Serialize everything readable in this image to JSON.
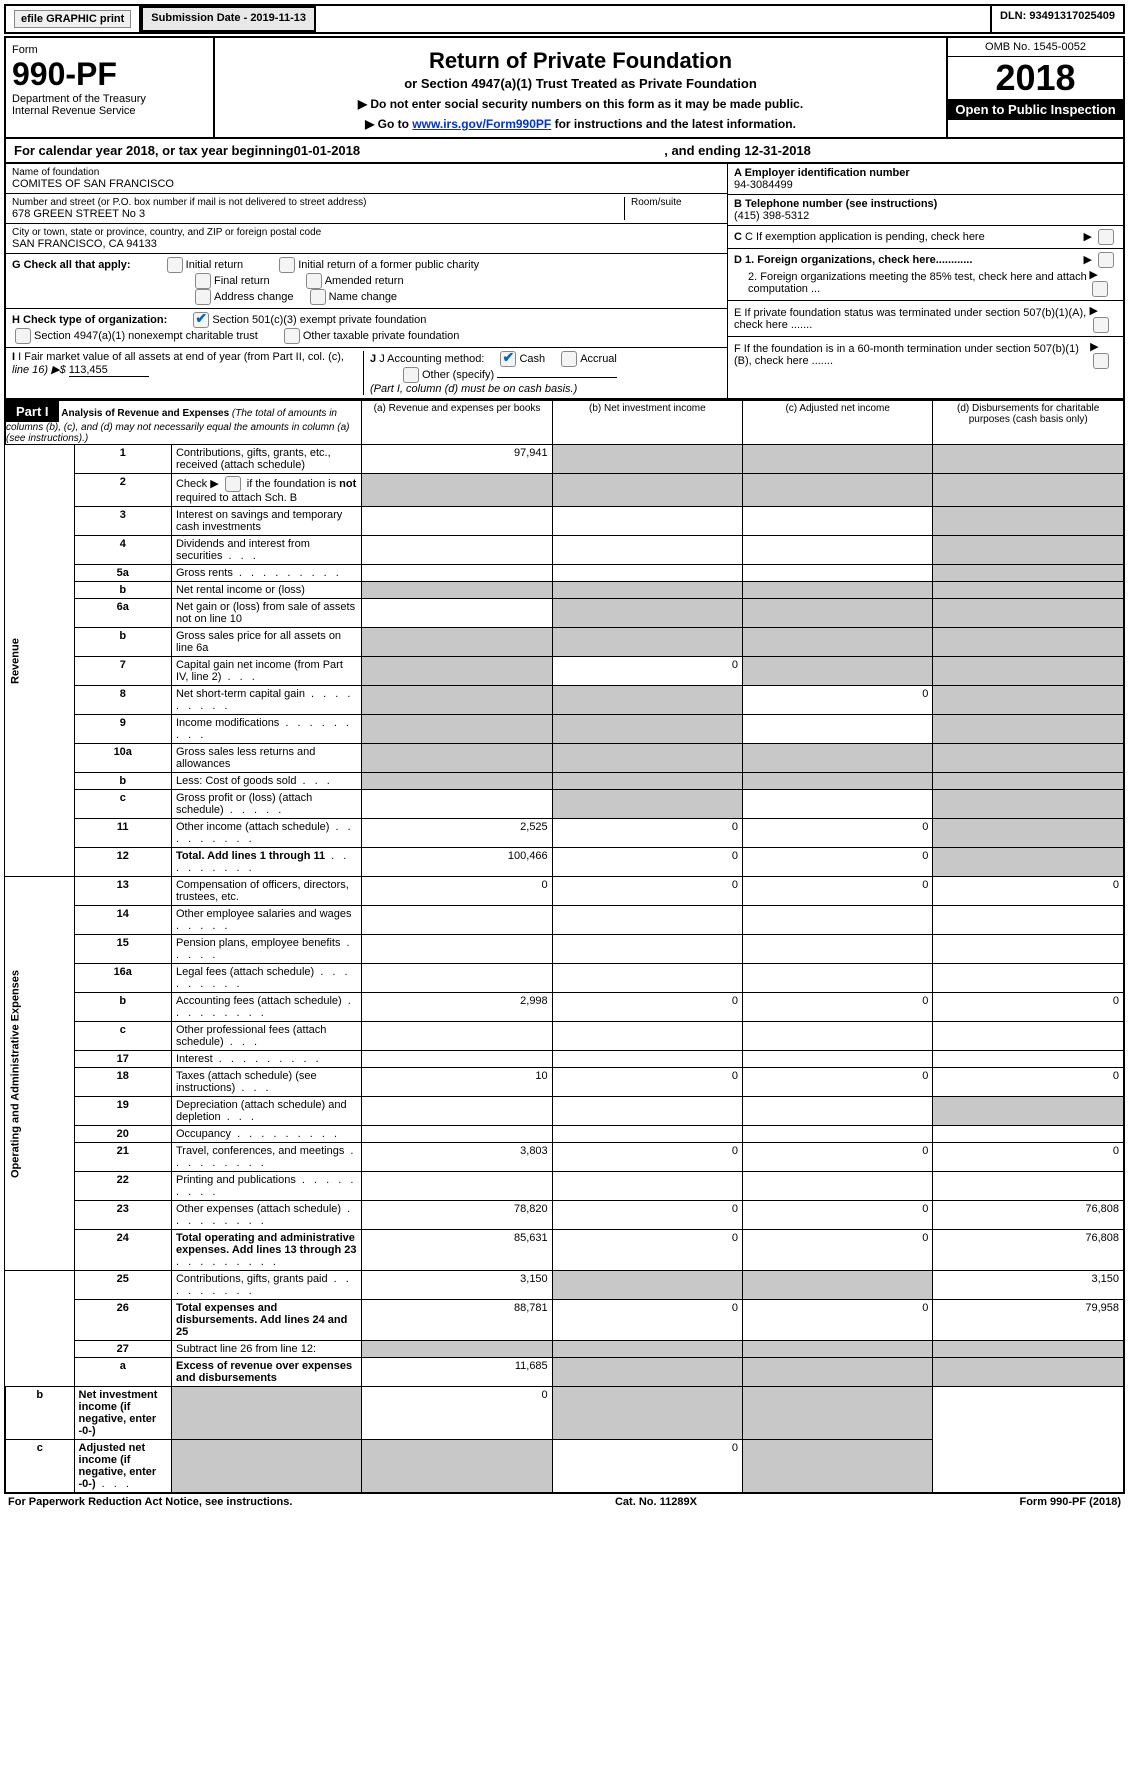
{
  "top": {
    "efile": "efile GRAPHIC print",
    "submission_label": "Submission Date - 2019-11-13",
    "dln": "DLN: 93491317025409"
  },
  "header": {
    "form_word": "Form",
    "form_number": "990-PF",
    "dept": "Department of the Treasury",
    "irs": "Internal Revenue Service",
    "title": "Return of Private Foundation",
    "subtitle": "or Section 4947(a)(1) Trust Treated as Private Foundation",
    "instr1": "▶ Do not enter social security numbers on this form as it may be made public.",
    "instr2_pre": "▶ Go to ",
    "instr2_link": "www.irs.gov/Form990PF",
    "instr2_post": " for instructions and the latest information.",
    "omb": "OMB No. 1545-0052",
    "year": "2018",
    "open": "Open to Public Inspection"
  },
  "cal": {
    "prefix": "For calendar year 2018, or tax year beginning ",
    "begin": "01-01-2018",
    "mid": ", and ending ",
    "end": "12-31-2018"
  },
  "namebox": {
    "name_label": "Name of foundation",
    "name": "COMITES OF SAN FRANCISCO",
    "street_label": "Number and street (or P.O. box number if mail is not delivered to street address)",
    "street": "678 GREEN STREET No 3",
    "room_label": "Room/suite",
    "city_label": "City or town, state or province, country, and ZIP or foreign postal code",
    "city": "SAN FRANCISCO, CA  94133"
  },
  "right": {
    "a_label": "A Employer identification number",
    "a_val": "94-3084499",
    "b_label": "B Telephone number (see instructions)",
    "b_val": "(415) 398-5312",
    "c_label": "C If exemption application is pending, check here",
    "d1": "D 1. Foreign organizations, check here............",
    "d2": "2. Foreign organizations meeting the 85% test, check here and attach computation ...",
    "e": "E  If private foundation status was terminated under section 507(b)(1)(A), check here .......",
    "f": "F  If the foundation is in a 60-month termination under section 507(b)(1)(B), check here .......",
    "g_label": "G Check all that apply:",
    "g_initial": "Initial return",
    "g_initial_former": "Initial return of a former public charity",
    "g_final": "Final return",
    "g_amended": "Amended return",
    "g_address": "Address change",
    "g_name": "Name change",
    "h_label": "H Check type of organization:",
    "h_501": "Section 501(c)(3) exempt private foundation",
    "h_4947": "Section 4947(a)(1) nonexempt charitable trust",
    "h_other": "Other taxable private foundation",
    "i_label": "I Fair market value of all assets at end of year (from Part II, col. (c),",
    "i_line": "line 16) ▶$",
    "i_val": "113,455",
    "j_label": "J Accounting method:",
    "j_cash": "Cash",
    "j_accrual": "Accrual",
    "j_other": "Other (specify)",
    "j_note": "(Part I, column (d) must be on cash basis.)"
  },
  "part1": {
    "label": "Part I",
    "title": "Analysis of Revenue and Expenses",
    "title_note": " (The total of amounts in columns (b), (c), and (d) may not necessarily equal the amounts in column (a) (see instructions).)",
    "col_a": "(a)   Revenue and expenses per books",
    "col_b": "(b)  Net investment income",
    "col_c": "(c)  Adjusted net income",
    "col_d": "(d)  Disbursements for charitable purposes (cash basis only)",
    "revenue_label": "Revenue",
    "expenses_label": "Operating and Administrative Expenses"
  },
  "rows": [
    {
      "n": "1",
      "desc": "Contributions, gifts, grants, etc., received (attach schedule)",
      "a": "97,941",
      "b": "",
      "c": "",
      "d": "",
      "grey": [
        "b",
        "c",
        "d"
      ]
    },
    {
      "n": "2",
      "desc": "Check ▶ __ if the foundation is not required to attach Sch. B",
      "a": "",
      "b": "",
      "c": "",
      "d": "",
      "grey": [
        "a",
        "b",
        "c",
        "d"
      ],
      "checkbox": true
    },
    {
      "n": "3",
      "desc": "Interest on savings and temporary cash investments",
      "a": "",
      "b": "",
      "c": "",
      "d": "",
      "grey": [
        "d"
      ]
    },
    {
      "n": "4",
      "desc": "Dividends and interest from securities",
      "a": "",
      "b": "",
      "c": "",
      "d": "",
      "grey": [
        "d"
      ],
      "dots": "3"
    },
    {
      "n": "5a",
      "desc": "Gross rents",
      "a": "",
      "b": "",
      "c": "",
      "d": "",
      "grey": [
        "d"
      ],
      "dots": "long"
    },
    {
      "n": "b",
      "desc": "Net rental income or (loss)",
      "a": "",
      "b": "",
      "c": "",
      "d": "",
      "grey": [
        "a",
        "b",
        "c",
        "d"
      ]
    },
    {
      "n": "6a",
      "desc": "Net gain or (loss) from sale of assets not on line 10",
      "a": "",
      "b": "",
      "c": "",
      "d": "",
      "grey": [
        "b",
        "c",
        "d"
      ]
    },
    {
      "n": "b",
      "desc": "Gross sales price for all assets on line 6a",
      "a": "",
      "b": "",
      "c": "",
      "d": "",
      "grey": [
        "a",
        "b",
        "c",
        "d"
      ]
    },
    {
      "n": "7",
      "desc": "Capital gain net income (from Part IV, line 2)",
      "a": "",
      "b": "0",
      "c": "",
      "d": "",
      "grey": [
        "a",
        "c",
        "d"
      ],
      "dots": "3"
    },
    {
      "n": "8",
      "desc": "Net short-term capital gain",
      "a": "",
      "b": "",
      "c": "0",
      "d": "",
      "grey": [
        "a",
        "b",
        "d"
      ],
      "dots": "long"
    },
    {
      "n": "9",
      "desc": "Income modifications",
      "a": "",
      "b": "",
      "c": "",
      "d": "",
      "grey": [
        "a",
        "b",
        "d"
      ],
      "dots": "long"
    },
    {
      "n": "10a",
      "desc": "Gross sales less returns and allowances",
      "a": "",
      "b": "",
      "c": "",
      "d": "",
      "grey": [
        "a",
        "b",
        "c",
        "d"
      ]
    },
    {
      "n": "b",
      "desc": "Less: Cost of goods sold",
      "a": "",
      "b": "",
      "c": "",
      "d": "",
      "grey": [
        "a",
        "b",
        "c",
        "d"
      ],
      "dots": "3"
    },
    {
      "n": "c",
      "desc": "Gross profit or (loss) (attach schedule)",
      "a": "",
      "b": "",
      "c": "",
      "d": "",
      "grey": [
        "b",
        "d"
      ],
      "dots": "short"
    },
    {
      "n": "11",
      "desc": "Other income (attach schedule)",
      "a": "2,525",
      "b": "0",
      "c": "0",
      "d": "",
      "grey": [
        "d"
      ],
      "dots": "long"
    },
    {
      "n": "12",
      "desc": "Total. Add lines 1 through 11",
      "a": "100,466",
      "b": "0",
      "c": "0",
      "d": "",
      "grey": [
        "d"
      ],
      "bold": true,
      "dots": "long"
    },
    {
      "n": "13",
      "desc": "Compensation of officers, directors, trustees, etc.",
      "a": "0",
      "b": "0",
      "c": "0",
      "d": "0"
    },
    {
      "n": "14",
      "desc": "Other employee salaries and wages",
      "a": "",
      "b": "",
      "c": "",
      "d": "",
      "dots": "short"
    },
    {
      "n": "15",
      "desc": "Pension plans, employee benefits",
      "a": "",
      "b": "",
      "c": "",
      "d": "",
      "dots": "short"
    },
    {
      "n": "16a",
      "desc": "Legal fees (attach schedule)",
      "a": "",
      "b": "",
      "c": "",
      "d": "",
      "dots": "long"
    },
    {
      "n": "b",
      "desc": "Accounting fees (attach schedule)",
      "a": "2,998",
      "b": "0",
      "c": "0",
      "d": "0",
      "dots": "long"
    },
    {
      "n": "c",
      "desc": "Other professional fees (attach schedule)",
      "a": "",
      "b": "",
      "c": "",
      "d": "",
      "dots": "3"
    },
    {
      "n": "17",
      "desc": "Interest",
      "a": "",
      "b": "",
      "c": "",
      "d": "",
      "dots": "long"
    },
    {
      "n": "18",
      "desc": "Taxes (attach schedule) (see instructions)",
      "a": "10",
      "b": "0",
      "c": "0",
      "d": "0",
      "dots": "3"
    },
    {
      "n": "19",
      "desc": "Depreciation (attach schedule) and depletion",
      "a": "",
      "b": "",
      "c": "",
      "d": "",
      "grey": [
        "d"
      ],
      "dots": "3"
    },
    {
      "n": "20",
      "desc": "Occupancy",
      "a": "",
      "b": "",
      "c": "",
      "d": "",
      "dots": "long"
    },
    {
      "n": "21",
      "desc": "Travel, conferences, and meetings",
      "a": "3,803",
      "b": "0",
      "c": "0",
      "d": "0",
      "dots": "long"
    },
    {
      "n": "22",
      "desc": "Printing and publications",
      "a": "",
      "b": "",
      "c": "",
      "d": "",
      "dots": "long"
    },
    {
      "n": "23",
      "desc": "Other expenses (attach schedule)",
      "a": "78,820",
      "b": "0",
      "c": "0",
      "d": "76,808",
      "dots": "long"
    },
    {
      "n": "24",
      "desc": "Total operating and administrative expenses. Add lines 13 through 23",
      "a": "85,631",
      "b": "0",
      "c": "0",
      "d": "76,808",
      "bold": true,
      "dots": "long"
    },
    {
      "n": "25",
      "desc": "Contributions, gifts, grants paid",
      "a": "3,150",
      "b": "",
      "c": "",
      "d": "3,150",
      "grey": [
        "b",
        "c"
      ],
      "dots": "long"
    },
    {
      "n": "26",
      "desc": "Total expenses and disbursements. Add lines 24 and 25",
      "a": "88,781",
      "b": "0",
      "c": "0",
      "d": "79,958",
      "bold": true
    },
    {
      "n": "27",
      "desc": "Subtract line 26 from line 12:",
      "a": "",
      "b": "",
      "c": "",
      "d": "",
      "grey": [
        "a",
        "b",
        "c",
        "d"
      ]
    },
    {
      "n": "a",
      "desc": "Excess of revenue over expenses and disbursements",
      "a": "11,685",
      "b": "",
      "c": "",
      "d": "",
      "grey": [
        "b",
        "c",
        "d"
      ],
      "bold": true
    },
    {
      "n": "b",
      "desc": "Net investment income (if negative, enter -0-)",
      "a": "",
      "b": "0",
      "c": "",
      "d": "",
      "grey": [
        "a",
        "c",
        "d"
      ],
      "bold": true
    },
    {
      "n": "c",
      "desc": "Adjusted net income (if negative, enter -0-)",
      "a": "",
      "b": "",
      "c": "0",
      "d": "",
      "grey": [
        "a",
        "b",
        "d"
      ],
      "bold": true,
      "dots": "3"
    }
  ],
  "footer": {
    "left": "For Paperwork Reduction Act Notice, see instructions.",
    "mid": "Cat. No. 11289X",
    "right": "Form 990-PF (2018)"
  }
}
